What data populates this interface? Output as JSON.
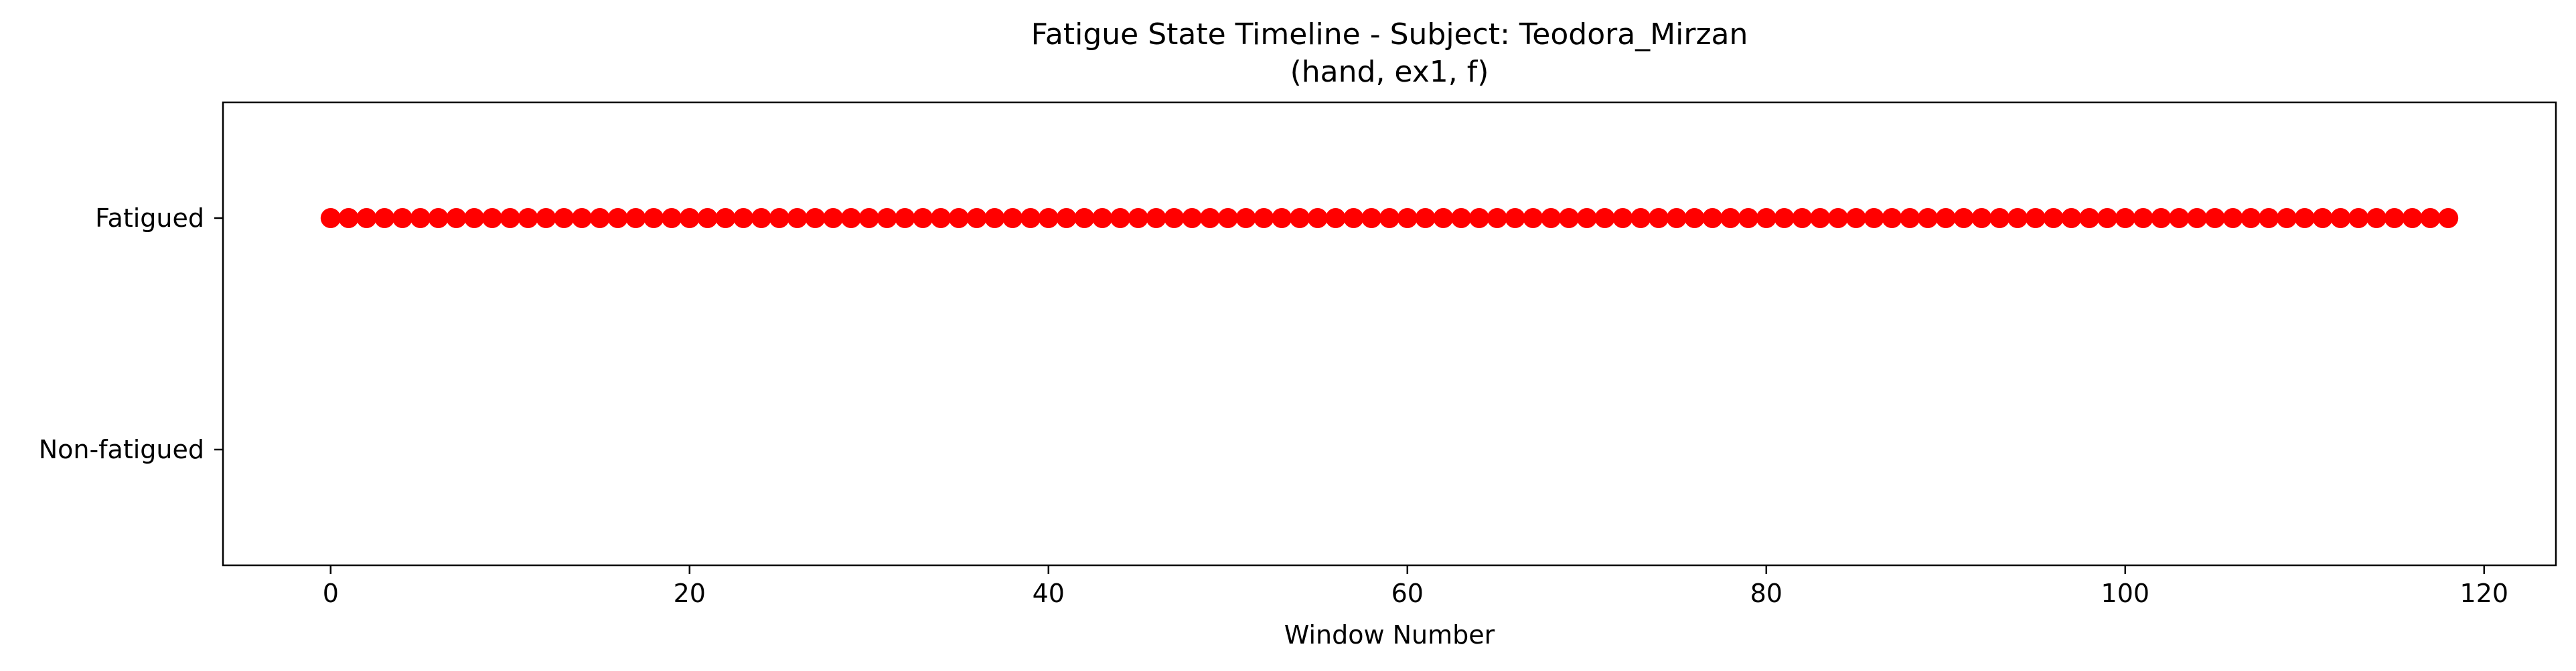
{
  "chart_data": {
    "type": "scatter",
    "title": "Fatigue State Timeline - Subject: Teodora_Mirzan",
    "subtitle": "(hand, ex1, f)",
    "xlabel": "Window Number",
    "ylabel": "",
    "xlim": [
      -6,
      124
    ],
    "ylim": [
      -0.5,
      1.5
    ],
    "x_ticks": [
      0,
      20,
      40,
      60,
      80,
      100,
      120
    ],
    "y_ticks": [
      {
        "value": 0,
        "label": "Non-fatigued"
      },
      {
        "value": 1,
        "label": "Fatigued"
      }
    ],
    "grid": false,
    "marker_color": "#ff0000",
    "series": [
      {
        "x": [
          0,
          1,
          2,
          3,
          4,
          5,
          6,
          7,
          8,
          9,
          10,
          11,
          12,
          13,
          14,
          15,
          16,
          17,
          18,
          19,
          20,
          21,
          22,
          23,
          24,
          25,
          26,
          27,
          28,
          29,
          30,
          31,
          32,
          33,
          34,
          35,
          36,
          37,
          38,
          39,
          40,
          41,
          42,
          43,
          44,
          45,
          46,
          47,
          48,
          49,
          50,
          51,
          52,
          53,
          54,
          55,
          56,
          57,
          58,
          59,
          60,
          61,
          62,
          63,
          64,
          65,
          66,
          67,
          68,
          69,
          70,
          71,
          72,
          73,
          74,
          75,
          76,
          77,
          78,
          79,
          80,
          81,
          82,
          83,
          84,
          85,
          86,
          87,
          88,
          89,
          90,
          91,
          92,
          93,
          94,
          95,
          96,
          97,
          98,
          99,
          100,
          101,
          102,
          103,
          104,
          105,
          106,
          107,
          108,
          109,
          110,
          111,
          112,
          113,
          114,
          115,
          116,
          117,
          118
        ],
        "y": [
          1,
          1,
          1,
          1,
          1,
          1,
          1,
          1,
          1,
          1,
          1,
          1,
          1,
          1,
          1,
          1,
          1,
          1,
          1,
          1,
          1,
          1,
          1,
          1,
          1,
          1,
          1,
          1,
          1,
          1,
          1,
          1,
          1,
          1,
          1,
          1,
          1,
          1,
          1,
          1,
          1,
          1,
          1,
          1,
          1,
          1,
          1,
          1,
          1,
          1,
          1,
          1,
          1,
          1,
          1,
          1,
          1,
          1,
          1,
          1,
          1,
          1,
          1,
          1,
          1,
          1,
          1,
          1,
          1,
          1,
          1,
          1,
          1,
          1,
          1,
          1,
          1,
          1,
          1,
          1,
          1,
          1,
          1,
          1,
          1,
          1,
          1,
          1,
          1,
          1,
          1,
          1,
          1,
          1,
          1,
          1,
          1,
          1,
          1,
          1,
          1,
          1,
          1,
          1,
          1,
          1,
          1,
          1,
          1,
          1,
          1,
          1,
          1,
          1,
          1,
          1,
          1,
          1,
          1
        ]
      }
    ]
  }
}
